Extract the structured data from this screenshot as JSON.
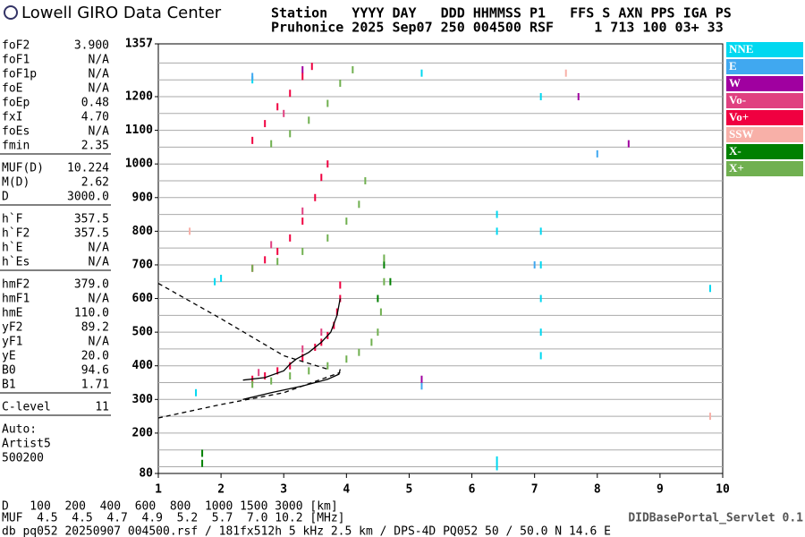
{
  "logo": "Lowell GIRO Data Center",
  "header": [
    "Station   YYYY DAY   DDD HHMMSS P1   FFS S AXN PPS IGA PS",
    "Pruhonice 2025 Sep07 250 004500 RSF     1 713 100 03+ 33"
  ],
  "params": {
    "groups": [
      [
        [
          "foF2",
          "3.900"
        ],
        [
          "foF1",
          "N/A"
        ],
        [
          "foF1p",
          "N/A"
        ],
        [
          "foE",
          "N/A"
        ],
        [
          "foEp",
          "0.48"
        ],
        [
          "fxI",
          "4.70"
        ],
        [
          "foEs",
          "N/A"
        ],
        [
          "fmin",
          "2.35"
        ]
      ],
      [
        [
          "MUF(D)",
          "10.224"
        ],
        [
          "M(D)",
          "2.62"
        ],
        [
          "D",
          "3000.0"
        ]
      ],
      [
        [
          "h`F",
          "357.5"
        ],
        [
          "h`F2",
          "357.5"
        ],
        [
          "h`E",
          "N/A"
        ],
        [
          "h`Es",
          "N/A"
        ]
      ],
      [
        [
          "hmF2",
          "379.0"
        ],
        [
          "hmF1",
          "N/A"
        ],
        [
          "hmE",
          "110.0"
        ],
        [
          "yF2",
          "89.2"
        ],
        [
          "yF1",
          "N/A"
        ],
        [
          "yE",
          "20.0"
        ],
        [
          "B0",
          "94.6"
        ],
        [
          "B1",
          "1.71"
        ]
      ],
      [
        [
          "C-level",
          "11"
        ]
      ]
    ],
    "notes": [
      "Auto:",
      "Artist5",
      "500200"
    ]
  },
  "chart_data": {
    "type": "scatter",
    "xlim": [
      1,
      10
    ],
    "xticks": [
      1,
      2,
      3,
      4,
      5,
      6,
      7,
      8,
      9,
      10
    ],
    "ylim": [
      80,
      1357
    ],
    "yticks": [
      80,
      200,
      300,
      400,
      500,
      600,
      700,
      800,
      900,
      1000,
      1100,
      1200,
      1357
    ],
    "ygrid": [
      100,
      150,
      200,
      250,
      300,
      350,
      400,
      450,
      500,
      550,
      600,
      650,
      700,
      750,
      800,
      850,
      900,
      950,
      1000,
      1050,
      1100,
      1150,
      1200,
      1250,
      1300
    ],
    "series": [
      {
        "name": "NNE",
        "color": "#00d8f0",
        "x": [
          6.4,
          6.4,
          6.4,
          6.4,
          7.1,
          7.1,
          7.1,
          7.1,
          7.1,
          1.9,
          2.0,
          1.6,
          2.5,
          7.1,
          9.8,
          5.2
        ],
        "y": [
          800,
          850,
          120,
          100,
          430,
          500,
          600,
          700,
          800,
          650,
          660,
          320,
          1250,
          1200,
          630,
          1270
        ]
      },
      {
        "name": "E",
        "color": "#40a8f0",
        "x": [
          2.5,
          5.2,
          8.0,
          7.0
        ],
        "y": [
          1260,
          340,
          1030,
          700
        ]
      },
      {
        "name": "W",
        "color": "#a000a0",
        "x": [
          3.3,
          7.7,
          8.5,
          5.2
        ],
        "y": [
          1280,
          1200,
          1060,
          360
        ]
      },
      {
        "name": "Vo-",
        "color": "#e04080",
        "x": [
          2.6,
          3.3,
          3.6,
          2.8,
          3.3,
          3.0
        ],
        "y": [
          380,
          450,
          500,
          760,
          860,
          1150
        ]
      },
      {
        "name": "Vo+",
        "color": "#f00040",
        "x": [
          2.5,
          2.7,
          2.9,
          3.1,
          3.3,
          3.5,
          3.6,
          3.7,
          3.8,
          3.85,
          3.9,
          3.9,
          2.5,
          2.7,
          2.9,
          3.1,
          3.3,
          3.5,
          3.6,
          3.7,
          2.5,
          2.7,
          2.9,
          3.1,
          3.3,
          3.45
        ],
        "y": [
          360,
          370,
          385,
          400,
          425,
          455,
          470,
          490,
          520,
          560,
          600,
          640,
          690,
          715,
          740,
          780,
          830,
          900,
          960,
          1000,
          1070,
          1120,
          1170,
          1210,
          1260,
          1290
        ]
      },
      {
        "name": "SSW",
        "color": "#f8b0a8",
        "x": [
          7.5,
          1.5,
          9.8
        ],
        "y": [
          1270,
          800,
          250
        ]
      },
      {
        "name": "X-",
        "color": "#008000",
        "x": [
          4.5,
          4.6,
          4.7,
          1.7,
          1.7
        ],
        "y": [
          600,
          700,
          650,
          110,
          140
        ]
      },
      {
        "name": "X+",
        "color": "#70b050",
        "x": [
          2.5,
          2.8,
          3.1,
          3.4,
          3.7,
          4.0,
          4.2,
          4.4,
          4.5,
          4.55,
          4.6,
          4.6,
          2.5,
          2.9,
          3.3,
          3.7,
          4.0,
          4.2,
          4.3,
          2.8,
          3.1,
          3.4,
          3.7,
          3.9,
          4.1
        ],
        "y": [
          345,
          355,
          370,
          385,
          400,
          420,
          440,
          470,
          500,
          560,
          650,
          720,
          690,
          710,
          740,
          780,
          830,
          880,
          950,
          1060,
          1090,
          1130,
          1180,
          1240,
          1280
        ]
      }
    ],
    "profile_lines": [
      {
        "style": "solid",
        "x": [
          2.35,
          2.7,
          3.0,
          3.1,
          3.2,
          3.4,
          3.6,
          3.75,
          3.85,
          3.9
        ],
        "y": [
          357.5,
          365,
          385,
          405,
          420,
          440,
          470,
          500,
          550,
          600
        ]
      },
      {
        "style": "solid",
        "x": [
          2.35,
          2.8,
          3.3,
          3.7,
          3.88,
          3.9
        ],
        "y": [
          300,
          320,
          340,
          360,
          375,
          390
        ]
      },
      {
        "style": "dashed",
        "x": [
          1,
          2,
          3,
          3.7
        ],
        "y": [
          645,
          540,
          430,
          390
        ]
      },
      {
        "style": "dashed",
        "x": [
          1,
          2,
          3,
          3.9
        ],
        "y": [
          245,
          285,
          320,
          380
        ]
      }
    ]
  },
  "muf_table": [
    "D   100  200  400  600  800  1000 1500 3000 [km]",
    "MUF  4.5  4.5  4.7  4.9  5.2  5.7  7.0 10.2 [MHz]"
  ],
  "footer": "db pq052 20250907 004500.rsf / 181fx512h 5 kHz 2.5 km / DPS-4D PQ052 50 / 50.0 N 14.6 E",
  "servlet": "DIDBasePortal_Servlet 0.1"
}
